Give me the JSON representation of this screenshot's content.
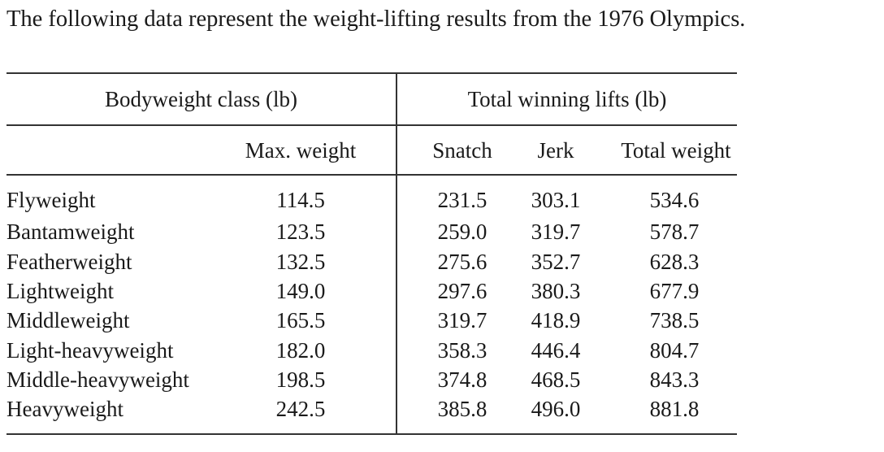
{
  "caption": "The following data represent the weight-lifting results from the 1976 Olympics.",
  "table": {
    "group_headers": {
      "bodyweight": "Bodyweight class (lb)",
      "lifts": "Total winning lifts (lb)"
    },
    "column_headers": {
      "class": "",
      "max_weight": "Max. weight",
      "snatch": "Snatch",
      "jerk": "Jerk",
      "total": "Total weight"
    },
    "rows": [
      {
        "class": "Flyweight",
        "max_weight": "114.5",
        "snatch": "231.5",
        "jerk": "303.1",
        "total": "534.6"
      },
      {
        "class": "Bantamweight",
        "max_weight": "123.5",
        "snatch": "259.0",
        "jerk": "319.7",
        "total": "578.7"
      },
      {
        "class": "Featherweight",
        "max_weight": "132.5",
        "snatch": "275.6",
        "jerk": "352.7",
        "total": "628.3"
      },
      {
        "class": "Lightweight",
        "max_weight": "149.0",
        "snatch": "297.6",
        "jerk": "380.3",
        "total": "677.9"
      },
      {
        "class": "Middleweight",
        "max_weight": "165.5",
        "snatch": "319.7",
        "jerk": "418.9",
        "total": "738.5"
      },
      {
        "class": "Light-heavyweight",
        "max_weight": "182.0",
        "snatch": "358.3",
        "jerk": "446.4",
        "total": "804.7"
      },
      {
        "class": "Middle-heavyweight",
        "max_weight": "198.5",
        "snatch": "374.8",
        "jerk": "468.5",
        "total": "843.3"
      },
      {
        "class": "Heavyweight",
        "max_weight": "242.5",
        "snatch": "385.8",
        "jerk": "496.0",
        "total": "881.8"
      }
    ]
  }
}
